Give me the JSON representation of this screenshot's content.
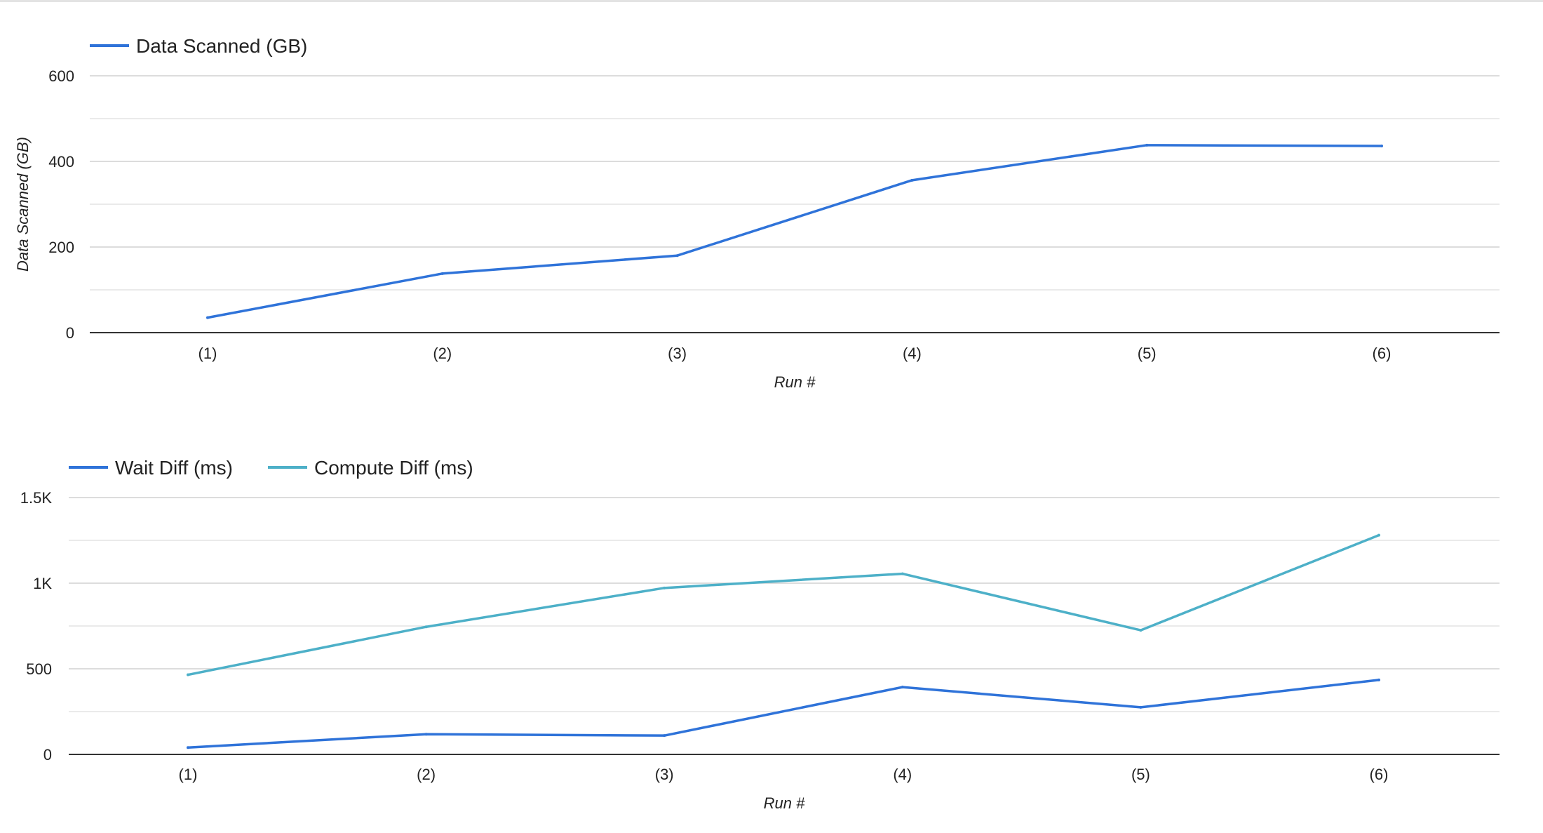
{
  "chart_data": [
    {
      "type": "line",
      "categories": [
        "(1)",
        "(2)",
        "(3)",
        "(4)",
        "(5)",
        "(6)"
      ],
      "series": [
        {
          "name": "Data Scanned (GB)",
          "color": "#2f73d9",
          "values": [
            35,
            138,
            180,
            356,
            438,
            436
          ]
        }
      ],
      "xlabel": "Run #",
      "ylabel": "Data Scanned (GB)",
      "ylim": [
        0,
        600
      ],
      "yticks": [
        {
          "v": 0,
          "label": "0"
        },
        {
          "v": 200,
          "label": "200"
        },
        {
          "v": 400,
          "label": "400"
        },
        {
          "v": 600,
          "label": "600"
        }
      ],
      "minor_grid": true,
      "legend": "top-left"
    },
    {
      "type": "line",
      "categories": [
        "(1)",
        "(2)",
        "(3)",
        "(4)",
        "(5)",
        "(6)"
      ],
      "series": [
        {
          "name": "Wait Diff (ms)",
          "color": "#2f73d9",
          "values": [
            40,
            118,
            110,
            393,
            275,
            435
          ]
        },
        {
          "name": "Compute Diff (ms)",
          "color": "#4db0c8",
          "values": [
            465,
            745,
            972,
            1055,
            725,
            1280
          ]
        }
      ],
      "xlabel": "Run #",
      "ylabel": "",
      "ylim": [
        0,
        1500
      ],
      "yticks": [
        {
          "v": 0,
          "label": "0"
        },
        {
          "v": 500,
          "label": "500"
        },
        {
          "v": 1000,
          "label": "1K"
        },
        {
          "v": 1500,
          "label": "1.5K"
        }
      ],
      "minor_grid": true,
      "legend": "top-left"
    }
  ]
}
